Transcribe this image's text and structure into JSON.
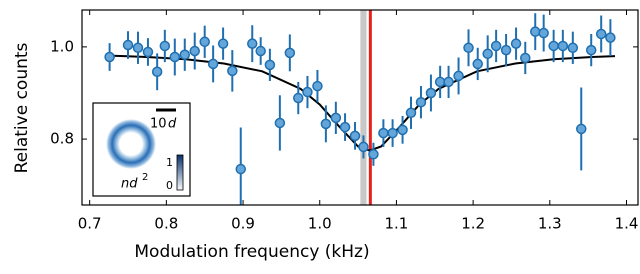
{
  "chart_data": {
    "type": "scatter",
    "xlabel": "Modulation frequency (kHz)",
    "ylabel": "Relative counts",
    "xlim": [
      0.69,
      1.415
    ],
    "ylim": [
      0.657,
      1.08
    ],
    "xticks": [
      0.7,
      0.8,
      0.9,
      {
        "value": 1,
        "label": "1.0"
      },
      1.1,
      1.2,
      1.3,
      1.4
    ],
    "yticks": [
      0.8,
      {
        "value": 1,
        "label": "1.0"
      }
    ],
    "points": {
      "color": "#64a6da",
      "edgecolor": "#1f6fb0",
      "x": [
        0.726,
        0.75,
        0.763,
        0.776,
        0.788,
        0.798,
        0.811,
        0.824,
        0.837,
        0.85,
        0.861,
        0.874,
        0.886,
        0.897,
        0.912,
        0.923,
        0.935,
        0.948,
        0.961,
        0.972,
        0.984,
        0.997,
        1.008,
        1.021,
        1.033,
        1.046,
        1.057,
        1.07,
        1.083,
        1.095,
        1.108,
        1.119,
        1.132,
        1.145,
        1.157,
        1.168,
        1.181,
        1.194,
        1.206,
        1.219,
        1.23,
        1.243,
        1.256,
        1.268,
        1.281,
        1.292,
        1.305,
        1.317,
        1.33,
        1.341,
        1.354,
        1.367,
        1.379
      ],
      "values": [
        0.978,
        1.004,
        0.998,
        0.989,
        0.946,
        1.002,
        0.978,
        0.983,
        0.991,
        1.011,
        0.963,
        1.007,
        0.948,
        0.735,
        1.007,
        0.991,
        0.961,
        0.835,
        0.987,
        0.889,
        0.902,
        0.915,
        0.833,
        0.846,
        0.826,
        0.807,
        0.783,
        0.767,
        0.813,
        0.813,
        0.82,
        0.857,
        0.88,
        0.9,
        0.924,
        0.924,
        0.937,
        0.998,
        0.963,
        0.985,
        1.002,
        0.993,
        1.007,
        0.976,
        1.033,
        1.03,
        1.002,
        1.002,
        0.998,
        0.822,
        0.993,
        1.028,
        1.02
      ],
      "errors": [
        0.03,
        0.03,
        0.035,
        0.03,
        0.04,
        0.035,
        0.04,
        0.035,
        0.04,
        0.035,
        0.04,
        0.035,
        0.045,
        0.09,
        0.04,
        0.03,
        0.035,
        0.06,
        0.04,
        0.035,
        0.035,
        0.035,
        0.04,
        0.035,
        0.03,
        0.03,
        0.025,
        0.025,
        0.03,
        0.03,
        0.03,
        0.035,
        0.035,
        0.04,
        0.035,
        0.035,
        0.04,
        0.04,
        0.035,
        0.04,
        0.035,
        0.035,
        0.035,
        0.035,
        0.04,
        0.04,
        0.035,
        0.035,
        0.035,
        0.09,
        0.035,
        0.04,
        0.04
      ]
    },
    "fit": {
      "color": "#000000",
      "x": [
        0.725,
        0.775,
        0.825,
        0.875,
        0.925,
        0.975,
        1.0,
        1.025,
        1.05,
        1.065,
        1.08,
        1.105,
        1.13,
        1.155,
        1.205,
        1.255,
        1.305,
        1.355,
        1.385
      ],
      "values": [
        0.981,
        0.978,
        0.973,
        0.964,
        0.947,
        0.909,
        0.875,
        0.828,
        0.784,
        0.775,
        0.784,
        0.828,
        0.875,
        0.909,
        0.947,
        0.964,
        0.973,
        0.978,
        0.98
      ]
    },
    "markers": {
      "band": {
        "range": [
          1.053,
          1.061
        ],
        "color": "#c8c8c8"
      },
      "line": {
        "value": 1.066,
        "color": "#e8201a"
      }
    },
    "inset": {
      "scale_number": "10",
      "scale_unit": "d",
      "density_base": "nd",
      "density_exp": "2",
      "colorbar_ticks": [
        0,
        1
      ]
    }
  }
}
